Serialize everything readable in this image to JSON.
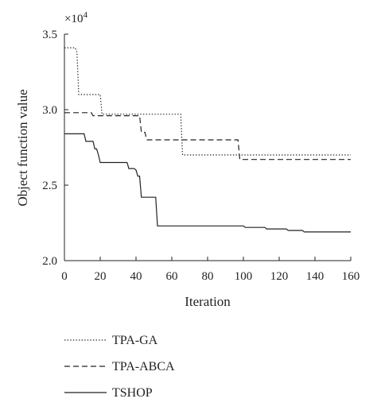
{
  "chart_data": {
    "type": "line",
    "title": "",
    "xlabel": "Iteration",
    "ylabel": "Object function value",
    "y_multiplier_label": "×10",
    "y_multiplier_exponent": "4",
    "xlim": [
      0,
      160
    ],
    "ylim": [
      2.0,
      3.5
    ],
    "x_ticks": [
      0,
      20,
      40,
      60,
      80,
      100,
      120,
      140,
      160
    ],
    "x_tick_labels": [
      "0",
      "20",
      "40",
      "60",
      "80",
      "100",
      "120",
      "140",
      "160"
    ],
    "y_ticks": [
      2.0,
      2.5,
      3.0,
      3.5
    ],
    "y_tick_labels": [
      "2.0",
      "2.5",
      "3.0",
      "3.5"
    ],
    "grid": false,
    "legend_position": "below",
    "series": [
      {
        "name": "TPA-GA",
        "style": "dotted",
        "color": "#222222",
        "points": [
          [
            0,
            3.41
          ],
          [
            6,
            3.41
          ],
          [
            7,
            3.38
          ],
          [
            8,
            3.1
          ],
          [
            20,
            3.1
          ],
          [
            21,
            2.97
          ],
          [
            65,
            2.97
          ],
          [
            66,
            2.7
          ],
          [
            160,
            2.7
          ]
        ]
      },
      {
        "name": "TPA-ABCA",
        "style": "dashed",
        "color": "#222222",
        "points": [
          [
            0,
            2.98
          ],
          [
            15,
            2.98
          ],
          [
            16,
            2.96
          ],
          [
            42,
            2.96
          ],
          [
            43,
            2.85
          ],
          [
            45,
            2.85
          ],
          [
            46,
            2.8
          ],
          [
            97,
            2.8
          ],
          [
            98,
            2.67
          ],
          [
            160,
            2.67
          ]
        ]
      },
      {
        "name": "TSHOP",
        "style": "solid",
        "color": "#222222",
        "points": [
          [
            0,
            2.84
          ],
          [
            11,
            2.84
          ],
          [
            12,
            2.79
          ],
          [
            16,
            2.79
          ],
          [
            17,
            2.74
          ],
          [
            18,
            2.74
          ],
          [
            19,
            2.7
          ],
          [
            20,
            2.65
          ],
          [
            35,
            2.65
          ],
          [
            36,
            2.61
          ],
          [
            39,
            2.61
          ],
          [
            40,
            2.6
          ],
          [
            41,
            2.56
          ],
          [
            42,
            2.56
          ],
          [
            43,
            2.42
          ],
          [
            51,
            2.42
          ],
          [
            52,
            2.23
          ],
          [
            100,
            2.23
          ],
          [
            101,
            2.22
          ],
          [
            112,
            2.22
          ],
          [
            113,
            2.21
          ],
          [
            124,
            2.21
          ],
          [
            125,
            2.2
          ],
          [
            133,
            2.2
          ],
          [
            134,
            2.19
          ],
          [
            160,
            2.19
          ]
        ]
      }
    ]
  }
}
